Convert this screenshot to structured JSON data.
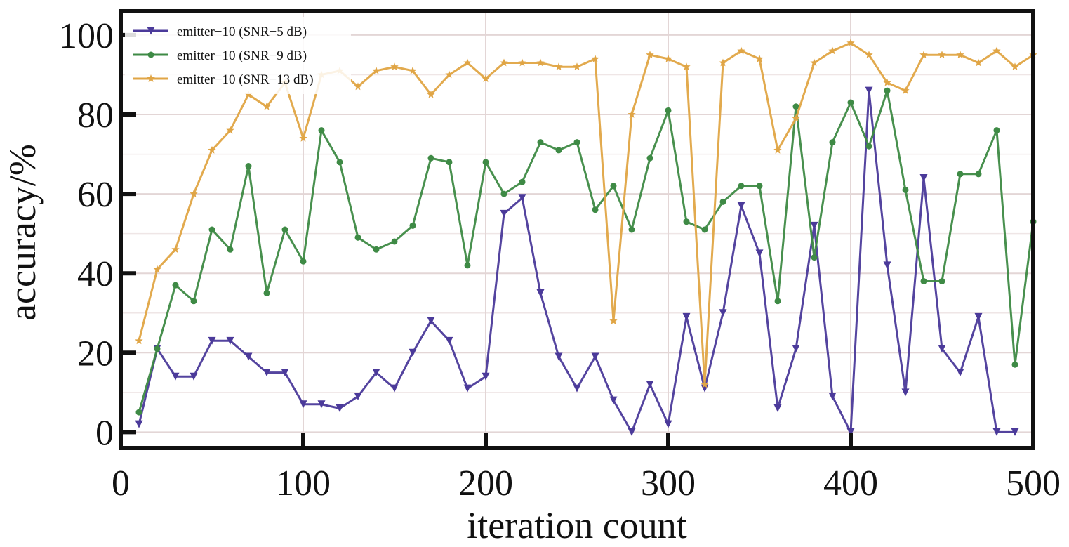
{
  "chart_data": {
    "type": "line",
    "title": "",
    "xlabel": "iteration count",
    "ylabel": "accuracy/%",
    "xlim": [
      0,
      500
    ],
    "ylim": [
      -4,
      106
    ],
    "xticks": [
      0,
      100,
      200,
      300,
      400,
      500
    ],
    "yticks": [
      0,
      20,
      40,
      60,
      80,
      100
    ],
    "x_tick_labels": [
      "0",
      "100",
      "200",
      "300",
      "400",
      "500"
    ],
    "y_tick_labels": [
      "0",
      "20",
      "40",
      "60",
      "80",
      "100"
    ],
    "grid": true,
    "legend_position": "top-left",
    "series": [
      {
        "name": "emitter−10 (SNR−5 dB)",
        "color": "#4b3a9a",
        "marker": "triangle-down",
        "x": [
          10,
          20,
          30,
          40,
          50,
          60,
          70,
          80,
          90,
          100,
          110,
          120,
          130,
          140,
          150,
          160,
          170,
          180,
          190,
          200,
          210,
          220,
          230,
          240,
          250,
          260,
          270,
          280,
          290,
          300,
          310,
          320,
          330,
          340,
          350,
          360,
          370,
          380,
          390,
          400,
          410,
          420,
          430,
          440,
          450,
          460,
          470,
          480,
          490
        ],
        "y": [
          2,
          21,
          14,
          14,
          23,
          23,
          19,
          15,
          15,
          7,
          7,
          6,
          9,
          15,
          11,
          20,
          28,
          23,
          11,
          14,
          55,
          59,
          35,
          19,
          11,
          19,
          8,
          0,
          12,
          2,
          29,
          11,
          30,
          57,
          45,
          6,
          21,
          52,
          9,
          0,
          86,
          42,
          10,
          64,
          21,
          15,
          29,
          0,
          0
        ]
      },
      {
        "name": "emitter−10 (SNR−9 dB)",
        "color": "#3e8a45",
        "marker": "circle",
        "x": [
          10,
          20,
          30,
          40,
          50,
          60,
          70,
          80,
          90,
          100,
          110,
          120,
          130,
          140,
          150,
          160,
          170,
          180,
          190,
          200,
          210,
          220,
          230,
          240,
          250,
          260,
          270,
          280,
          290,
          300,
          310,
          320,
          330,
          340,
          350,
          360,
          370,
          380,
          390,
          400,
          410,
          420,
          430,
          440,
          450,
          460,
          470,
          480,
          490,
          500
        ],
        "y": [
          5,
          21,
          37,
          33,
          51,
          46,
          67,
          35,
          51,
          43,
          76,
          68,
          49,
          46,
          48,
          52,
          69,
          68,
          42,
          68,
          60,
          63,
          73,
          71,
          73,
          56,
          62,
          51,
          69,
          81,
          53,
          51,
          58,
          62,
          62,
          33,
          82,
          44,
          73,
          83,
          72,
          86,
          61,
          38,
          38,
          65,
          65,
          76,
          17,
          53
        ]
      },
      {
        "name": "emitter−10 (SNR−13 dB)",
        "color": "#e0a545",
        "marker": "star",
        "x": [
          10,
          20,
          30,
          40,
          50,
          60,
          70,
          80,
          90,
          100,
          110,
          120,
          130,
          140,
          150,
          160,
          170,
          180,
          190,
          200,
          210,
          220,
          230,
          240,
          250,
          260,
          270,
          280,
          290,
          300,
          310,
          320,
          330,
          340,
          350,
          360,
          370,
          380,
          390,
          400,
          410,
          420,
          430,
          440,
          450,
          460,
          470,
          480,
          490,
          500
        ],
        "y": [
          23,
          41,
          46,
          60,
          71,
          76,
          85,
          82,
          88,
          74,
          90,
          91,
          87,
          91,
          92,
          91,
          85,
          90,
          93,
          89,
          93,
          93,
          93,
          92,
          92,
          94,
          28,
          80,
          95,
          94,
          92,
          12,
          93,
          96,
          94,
          71,
          79,
          93,
          96,
          98,
          95,
          88,
          86,
          95,
          95,
          95,
          93,
          96,
          92,
          95
        ]
      }
    ]
  }
}
